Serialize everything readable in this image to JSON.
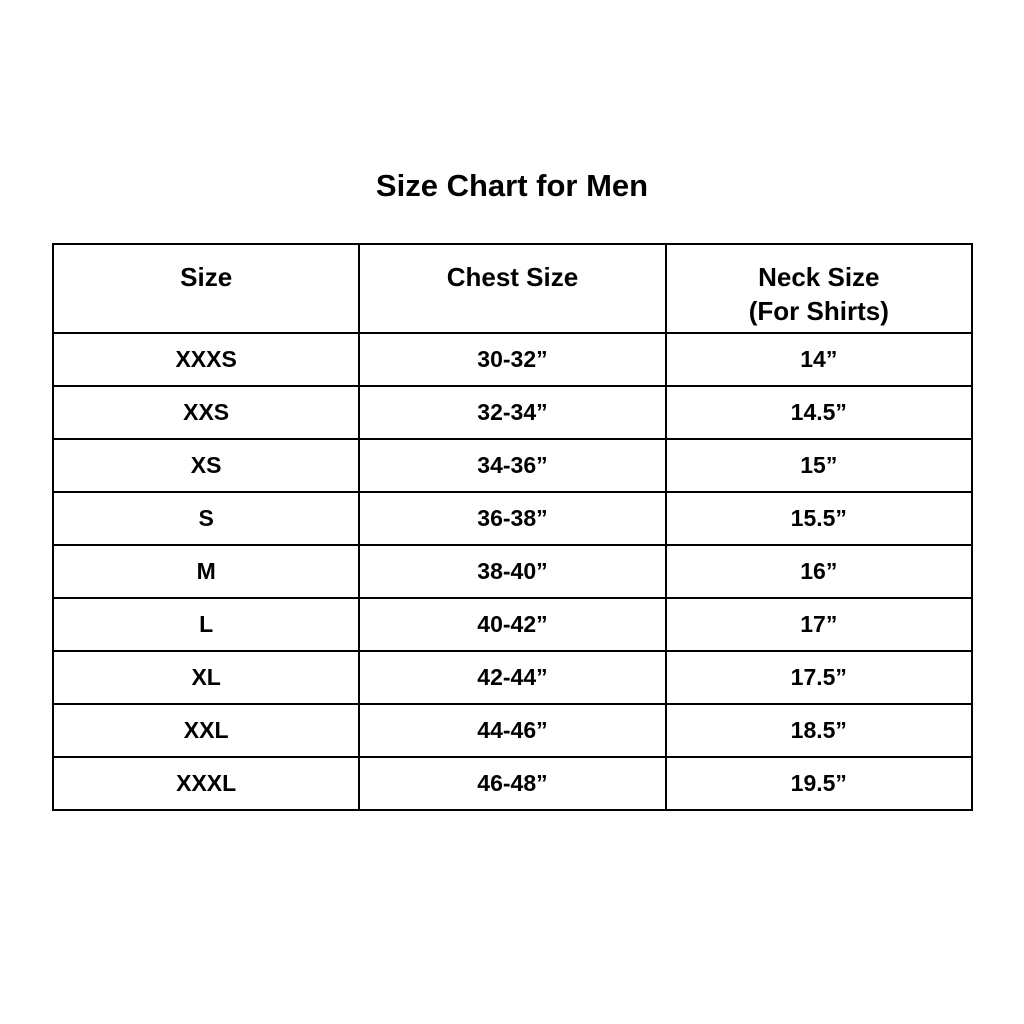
{
  "title": "Size Chart for Men",
  "table": {
    "headers": [
      "Size",
      "Chest Size",
      "Neck Size",
      "(For Shirts)"
    ],
    "rows": [
      [
        "XXXS",
        "30-32”",
        "14”"
      ],
      [
        "XXS",
        "32-34”",
        "14.5”"
      ],
      [
        "XS",
        "34-36”",
        "15”"
      ],
      [
        "S",
        "36-38”",
        "15.5”"
      ],
      [
        "M",
        "38-40”",
        "16”"
      ],
      [
        "L",
        "40-42”",
        "17”"
      ],
      [
        "XL",
        "42-44”",
        "17.5”"
      ],
      [
        "XXL",
        "44-46”",
        "18.5”"
      ],
      [
        "XXXL",
        "46-48”",
        "19.5”"
      ]
    ]
  }
}
